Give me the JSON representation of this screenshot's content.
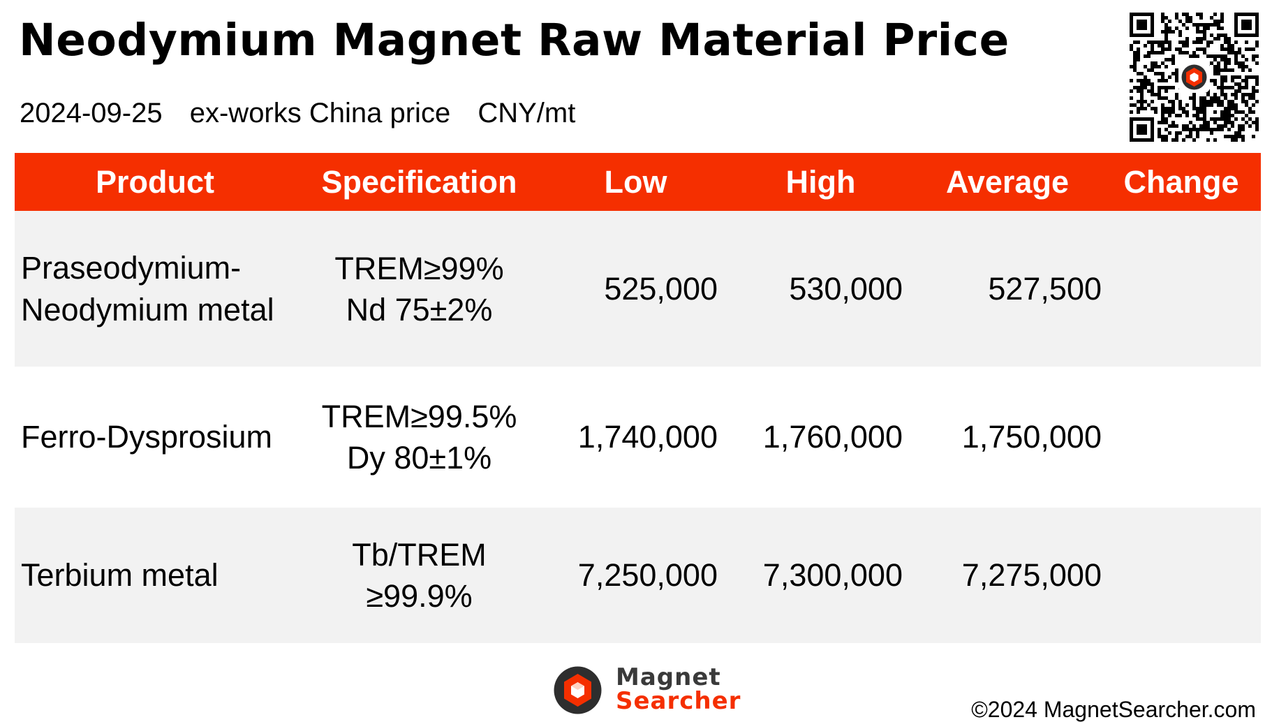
{
  "title": "Neodymium Magnet Raw Material Price",
  "subtitle": {
    "date": "2024-09-25",
    "basis": "ex-works China price",
    "unit": "CNY/mt"
  },
  "colors": {
    "header_bg": "#f52f00",
    "header_text": "#ffffff",
    "row_alt_bg": "#f2f2f2",
    "brand_orange": "#f52f00",
    "brand_dark": "#3a3a3a"
  },
  "table": {
    "columns": [
      "Product",
      "Specification",
      "Low",
      "High",
      "Average",
      "Change"
    ],
    "rows": [
      {
        "product": "Praseodymium-\nNeodymium metal",
        "spec": "TREM≥99%\nNd 75±2%",
        "low": "525,000",
        "high": "530,000",
        "average": "527,500",
        "change": ""
      },
      {
        "product": "Ferro-Dysprosium",
        "spec": "TREM≥99.5%\nDy 80±1%",
        "low": "1,740,000",
        "high": "1,760,000",
        "average": "1,750,000",
        "change": ""
      },
      {
        "product": "Terbium metal",
        "spec": "Tb/TREM\n≥99.9%",
        "low": "7,250,000",
        "high": "7,300,000",
        "average": "7,275,000",
        "change": ""
      }
    ]
  },
  "footer": {
    "logo_line1": "Magnet",
    "logo_line2": "Searcher",
    "copyright": "©2024 MagnetSearcher.com"
  },
  "icons": {
    "qr": "qr-code-icon",
    "brand": "magnet-searcher-logo-icon"
  }
}
